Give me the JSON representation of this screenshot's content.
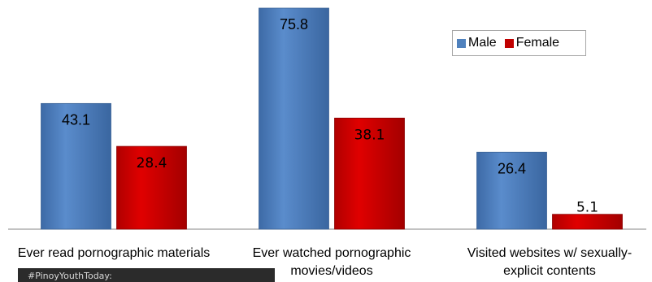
{
  "chart_data": {
    "type": "bar",
    "categories": [
      "Ever read pornographic materials",
      "Ever watched pornographic movies/videos",
      "Visited websites w/ sexually-explicit contents"
    ],
    "category_lines": [
      [
        "Ever read pornographic materials"
      ],
      [
        "Ever watched pornographic",
        "movies/videos"
      ],
      [
        "Visited websites w/ sexually-",
        "explicit contents"
      ]
    ],
    "series": [
      {
        "name": "Male",
        "values": [
          43.1,
          75.8,
          26.4
        ],
        "labels": [
          "43.1",
          "75.8",
          "26.4"
        ],
        "color": "#4f81bd"
      },
      {
        "name": "Female",
        "values": [
          28.4,
          38.1,
          5.1
        ],
        "labels": [
          "28.4",
          "38.1",
          "5.1"
        ],
        "color": "#c00000"
      }
    ],
    "ylim": [
      0,
      80
    ],
    "legend_position": "top-right",
    "grid": false
  },
  "footer": {
    "text": "#PinoyYouthToday:"
  }
}
